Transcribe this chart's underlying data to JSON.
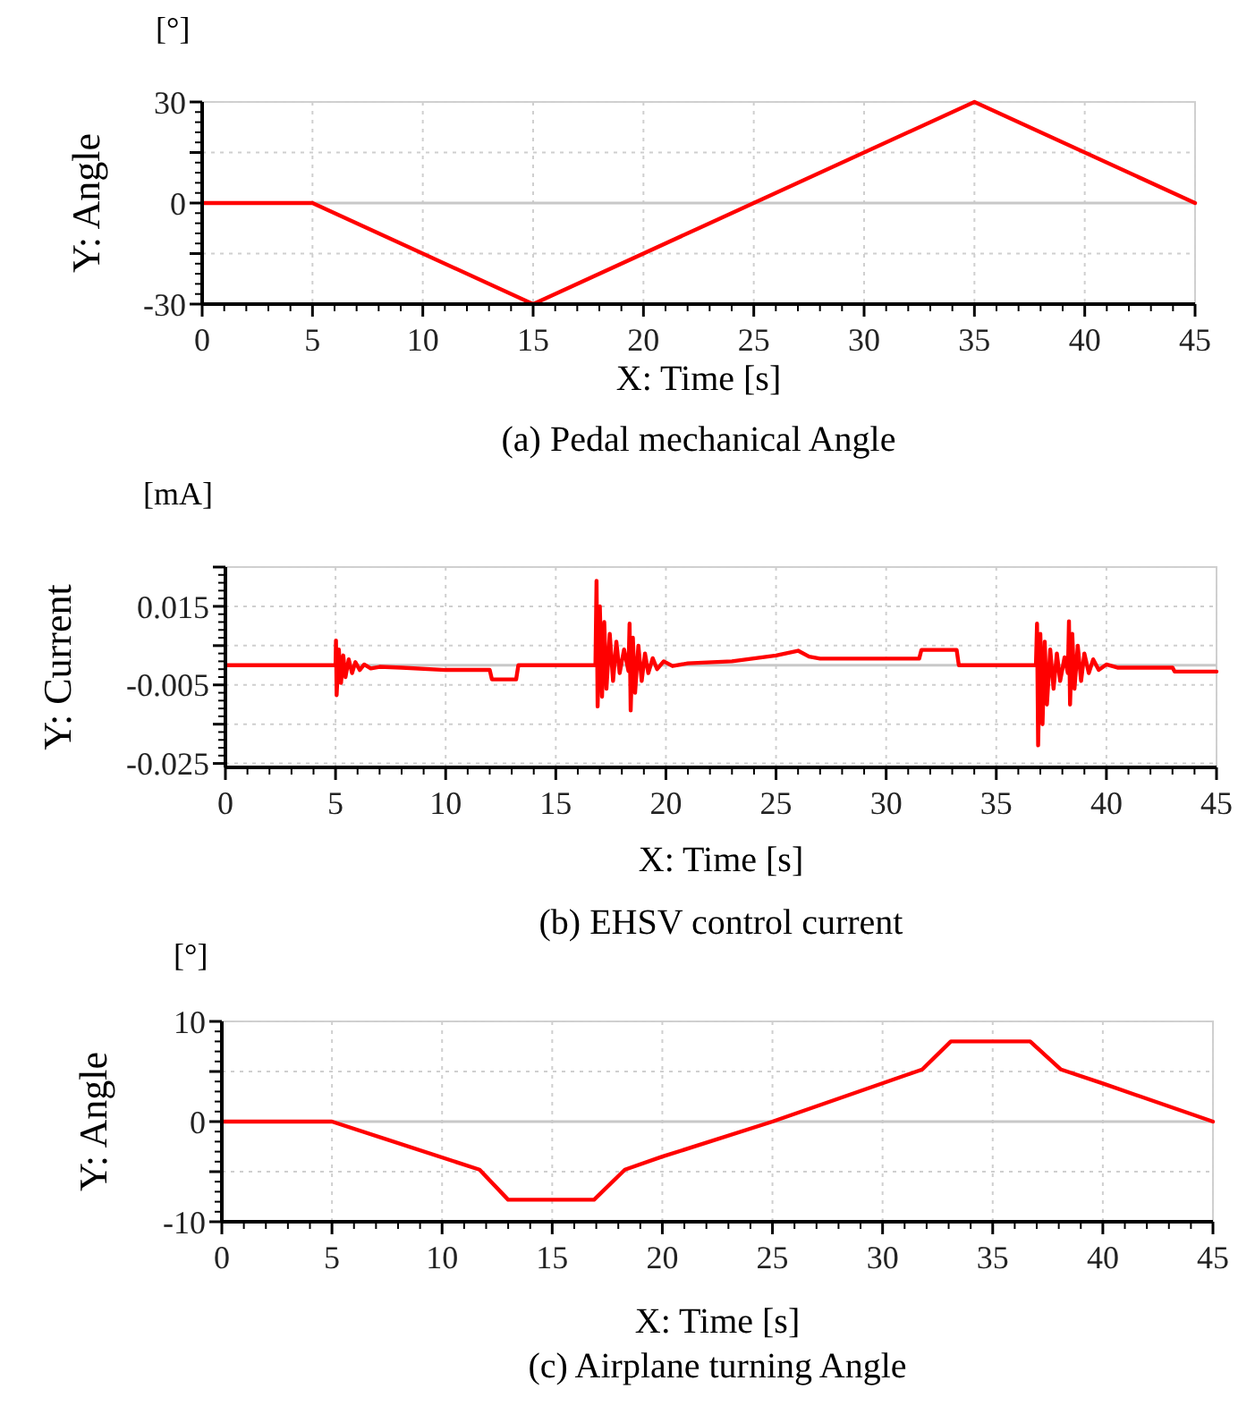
{
  "chart_data": [
    {
      "type": "line",
      "title": "(a) Pedal mechanical Angle",
      "xlabel": "X: Time [s]",
      "ylabel": "Y: Angle",
      "annotations": [
        "[°]"
      ],
      "x": [
        0,
        5,
        15,
        35,
        45
      ],
      "series": [
        {
          "color": "#ff0000",
          "values": [
            0,
            0,
            -30,
            30,
            0
          ]
        }
      ],
      "xlim": [
        0,
        45
      ],
      "xticks": [
        0,
        5,
        10,
        15,
        20,
        25,
        30,
        35,
        40,
        45
      ],
      "ylim": [
        -30,
        30
      ],
      "yticks": [
        -30,
        {
          "value": -15,
          "label": null
        },
        0,
        {
          "value": 15,
          "label": null
        },
        30
      ],
      "grid": true,
      "ref_lines": [
        {
          "axis": "y",
          "value": 0,
          "color": "#c8c8c8"
        }
      ],
      "marker": "none",
      "line_style": "solid"
    },
    {
      "type": "line",
      "title": "(b) EHSV control current",
      "xlabel": "X: Time [s]",
      "ylabel": "Y: Current",
      "annotations": [
        "[mA]"
      ],
      "x": [
        0,
        5,
        5.02,
        5.05,
        5.15,
        5.25,
        5.35,
        5.45,
        5.6,
        5.75,
        5.9,
        6.1,
        6.3,
        6.6,
        7,
        8,
        10,
        12,
        12.1,
        13.2,
        13.3,
        16.8,
        16.85,
        16.9,
        17,
        17.1,
        17.2,
        17.3,
        17.45,
        17.6,
        17.75,
        17.9,
        18.1,
        18.3,
        18.35,
        18.4,
        18.5,
        18.6,
        18.75,
        18.9,
        19.05,
        19.2,
        19.4,
        19.6,
        19.9,
        20.3,
        21,
        23,
        25,
        26,
        26.5,
        27,
        31.5,
        31.6,
        33.2,
        33.3,
        36.8,
        36.85,
        36.9,
        37,
        37.1,
        37.2,
        37.3,
        37.45,
        37.6,
        37.75,
        37.9,
        38.1,
        38.25,
        38.3,
        38.35,
        38.45,
        38.55,
        38.7,
        38.85,
        39,
        39.2,
        39.4,
        39.65,
        40,
        40.5,
        43,
        43.1,
        45
      ],
      "series": [
        {
          "color": "#ff0000",
          "values": [
            0,
            0,
            0.0063,
            -0.0076,
            0.004,
            -0.0045,
            0.0025,
            -0.003,
            0.0015,
            -0.002,
            0.0008,
            -0.0012,
            0.0002,
            -0.0008,
            -0.0004,
            -0.0006,
            -0.0012,
            -0.0012,
            -0.0036,
            -0.0036,
            0,
            0,
            0.0215,
            -0.0105,
            0.015,
            -0.008,
            0.011,
            -0.006,
            0.008,
            -0.004,
            0.006,
            -0.002,
            0.004,
            -0.0015,
            0.0106,
            -0.0115,
            0.007,
            -0.007,
            0.005,
            -0.004,
            0.003,
            -0.002,
            0.0018,
            -0.001,
            0.001,
            -0.0002,
            0.0005,
            0.001,
            0.0025,
            0.0037,
            0.0022,
            0.0017,
            0.0017,
            0.0039,
            0.0039,
            0,
            0,
            0.0106,
            -0.0204,
            0.008,
            -0.015,
            0.006,
            -0.01,
            0.004,
            -0.006,
            0.003,
            -0.004,
            0.002,
            -0.002,
            0.0112,
            -0.01,
            0.008,
            -0.006,
            0.005,
            -0.004,
            0.003,
            -0.002,
            0.0015,
            -0.0012,
            0.0002,
            -0.0006,
            -0.0006,
            -0.0016,
            -0.0016
          ]
        }
      ],
      "xlim": [
        0,
        45
      ],
      "xticks": [
        0,
        5,
        10,
        15,
        20,
        25,
        30,
        35,
        40,
        45
      ],
      "ylim": [
        -0.026,
        0.025
      ],
      "yticks": [
        -0.025,
        {
          "value": -0.015,
          "label": null
        },
        -0.005,
        {
          "value": 0.005,
          "label": null
        },
        0.015,
        {
          "value": 0.025,
          "label": null
        }
      ],
      "grid": true,
      "ref_lines": [
        {
          "axis": "y",
          "value": 0,
          "color": "#c8c8c8"
        }
      ],
      "marker": "none",
      "line_style": "solid"
    },
    {
      "type": "line",
      "title": "(c) Airplane turning Angle",
      "xlabel": "X: Time [s]",
      "ylabel": "Y: Angle",
      "annotations": [
        "[°]"
      ],
      "x": [
        0,
        5,
        11.7,
        13,
        16.9,
        18.3,
        20,
        25,
        31.8,
        33.1,
        36.7,
        38.1,
        40,
        45
      ],
      "series": [
        {
          "color": "#ff0000",
          "values": [
            0,
            0,
            -4.8,
            -7.8,
            -7.8,
            -4.8,
            -3.5,
            0,
            5.2,
            8,
            8,
            5.2,
            3.8,
            0
          ]
        }
      ],
      "xlim": [
        0,
        45
      ],
      "xticks": [
        0,
        5,
        10,
        15,
        20,
        25,
        30,
        35,
        40,
        45
      ],
      "ylim": [
        -10,
        10
      ],
      "yticks": [
        -10,
        {
          "value": -5,
          "label": null
        },
        0,
        {
          "value": 5,
          "label": null
        },
        10
      ],
      "grid": true,
      "ref_lines": [
        {
          "axis": "y",
          "value": 0,
          "color": "#c8c8c8"
        }
      ],
      "marker": "none",
      "line_style": "solid"
    }
  ]
}
